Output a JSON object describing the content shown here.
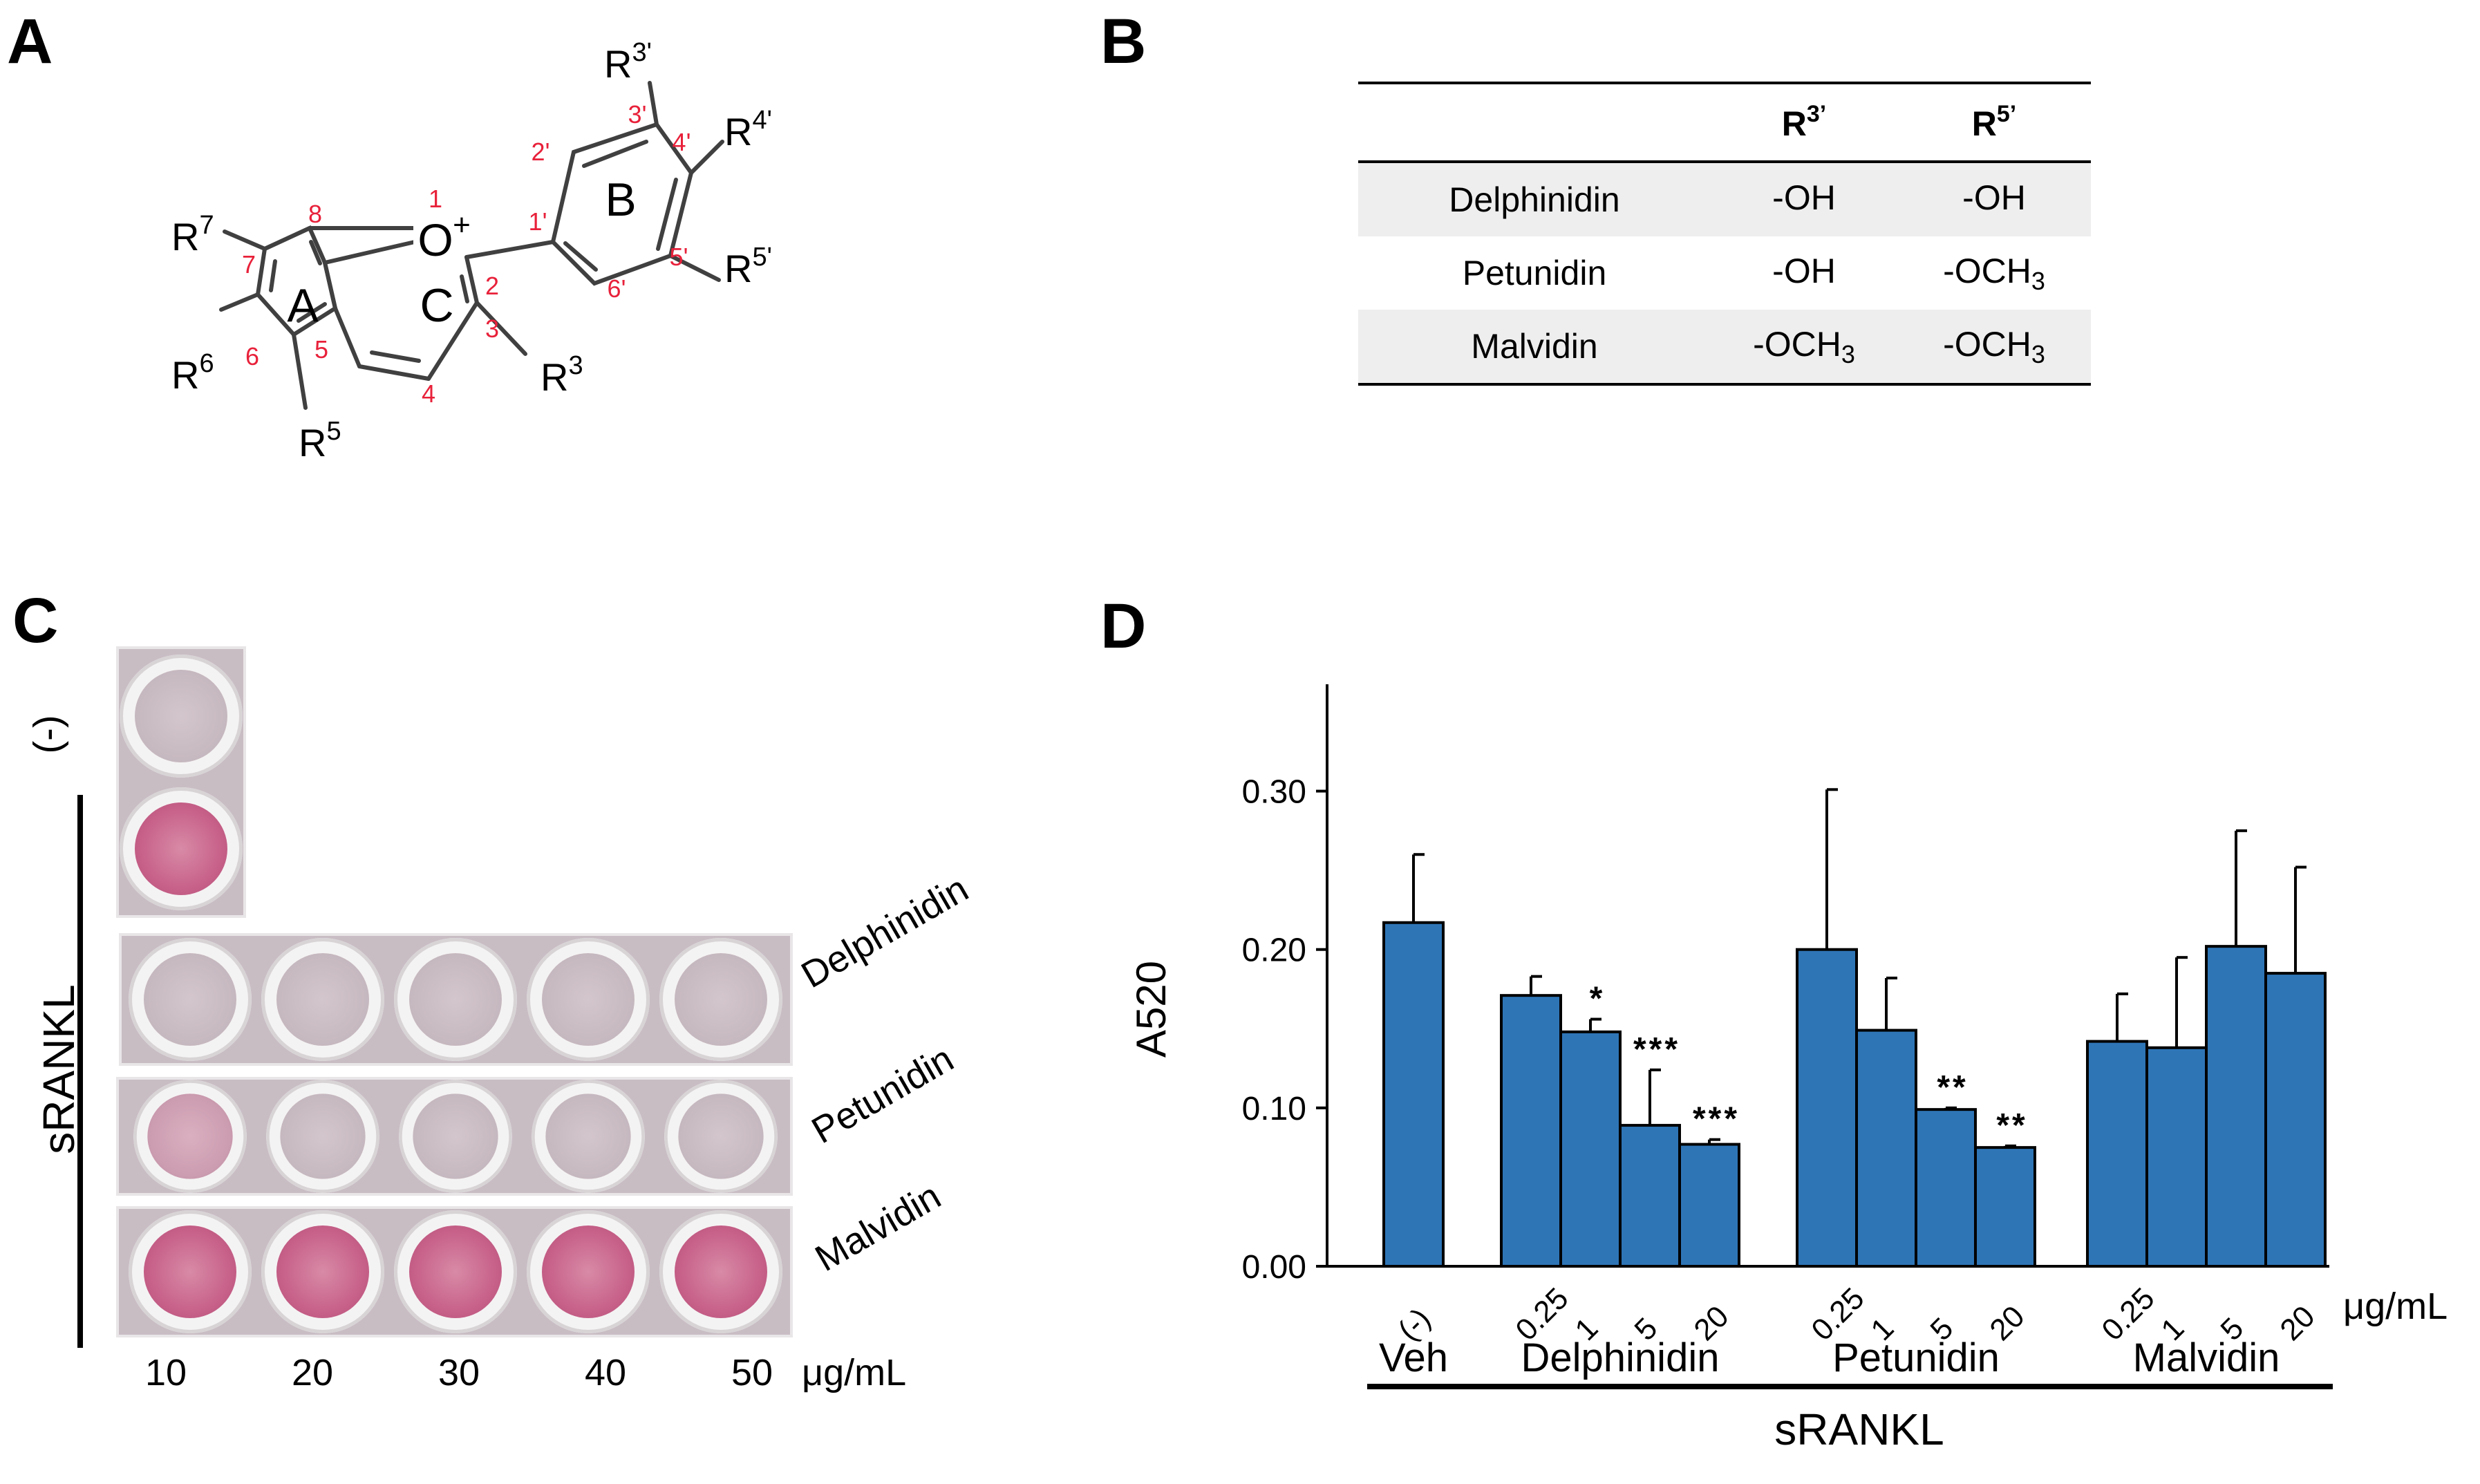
{
  "panels": {
    "a": "A",
    "b": "B",
    "c": "C",
    "d": "D"
  },
  "structure": {
    "ring_labels": [
      "A",
      "C",
      "B"
    ],
    "oxonium": "O",
    "oxonium_charge": "+",
    "substituents": {
      "r7": {
        "base": "R",
        "sup": "7"
      },
      "r6": {
        "base": "R",
        "sup": "6"
      },
      "r5": {
        "base": "R",
        "sup": "5"
      },
      "r3": {
        "base": "R",
        "sup": "3"
      },
      "r3p": {
        "base": "R",
        "sup": "3'"
      },
      "r4p": {
        "base": "R",
        "sup": "4'"
      },
      "r5p": {
        "base": "R",
        "sup": "5'"
      }
    },
    "atom_numbers": [
      "1",
      "2",
      "3",
      "4",
      "5",
      "6",
      "7",
      "8",
      "1'",
      "2'",
      "3'",
      "4'",
      "5'",
      "6'"
    ]
  },
  "table_b": {
    "headers": [
      {
        "base": "",
        "sup": ""
      },
      {
        "base": "R",
        "sup": "3’"
      },
      {
        "base": "R",
        "sup": "5’"
      }
    ],
    "rows": [
      {
        "name": "Delphinidin",
        "r3": {
          "base": "-OH",
          "sub": ""
        },
        "r5": {
          "base": "-OH",
          "sub": ""
        }
      },
      {
        "name": "Petunidin",
        "r3": {
          "base": "-OH",
          "sub": ""
        },
        "r5": {
          "base": "-OCH",
          "sub": "3"
        }
      },
      {
        "name": "Malvidin",
        "r3": {
          "base": "-OCH",
          "sub": "3"
        },
        "r5": {
          "base": "-OCH",
          "sub": "3"
        }
      }
    ]
  },
  "panel_c": {
    "neg_label": "(-)",
    "srankl_label": "sRANKL",
    "row_labels": [
      "Delphinidin",
      "Petunidin",
      "Malvidin"
    ],
    "concentrations": [
      "10",
      "20",
      "30",
      "40",
      "50"
    ],
    "unit": "μg/mL"
  },
  "chart_data": {
    "type": "bar",
    "ylabel": "A520",
    "ylim": [
      0,
      0.35
    ],
    "yticks": [
      "0.00",
      "0.10",
      "0.20",
      "0.30"
    ],
    "unit": "μg/mL",
    "axis_group_label": "sRANKL",
    "groups": [
      {
        "name": "Veh",
        "categories": [
          "(-)"
        ],
        "values": [
          0.217
        ],
        "errors": [
          0.043
        ],
        "significance": [
          ""
        ]
      },
      {
        "name": "Delphinidin",
        "categories": [
          "0.25",
          "1",
          "5",
          "20"
        ],
        "values": [
          0.171,
          0.148,
          0.089,
          0.077
        ],
        "errors": [
          0.012,
          0.008,
          0.035,
          0.003
        ],
        "significance": [
          "",
          "*",
          "***",
          "***"
        ]
      },
      {
        "name": "Petunidin",
        "categories": [
          "0.25",
          "1",
          "5",
          "20"
        ],
        "values": [
          0.2,
          0.149,
          0.099,
          0.075
        ],
        "errors": [
          0.101,
          0.033,
          0.001,
          0.001
        ],
        "significance": [
          "",
          "",
          "**",
          "**"
        ]
      },
      {
        "name": "Malvidin",
        "categories": [
          "0.25",
          "1",
          "5",
          "20"
        ],
        "values": [
          0.142,
          0.138,
          0.202,
          0.185
        ],
        "errors": [
          0.03,
          0.057,
          0.073,
          0.067
        ],
        "significance": [
          "",
          "",
          "",
          ""
        ]
      }
    ],
    "colors": {
      "bar": "#2e75b6",
      "bar_edge": "#000000"
    }
  }
}
